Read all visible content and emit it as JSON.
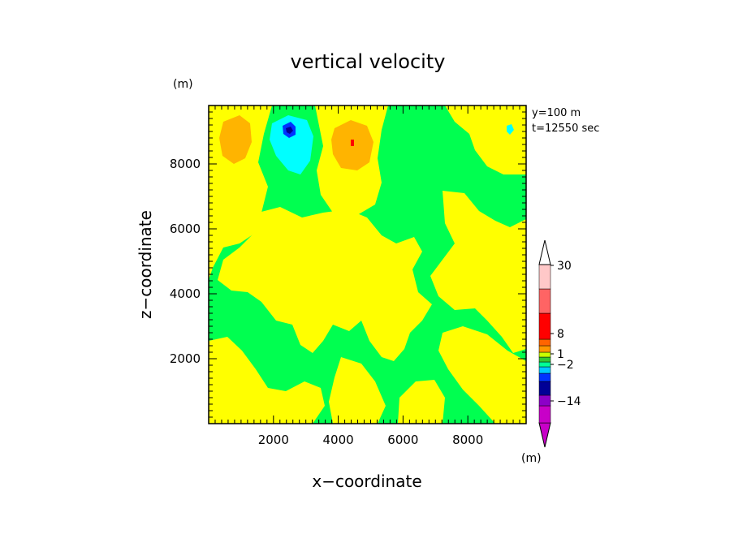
{
  "chart_data": {
    "type": "heatmap",
    "title": "vertical velocity",
    "xlabel": "x−coordinate",
    "ylabel": "z−coordinate",
    "x_unit": "(m)",
    "y_unit": "(m)",
    "xlim": [
      0,
      9800
    ],
    "ylim": [
      0,
      9800
    ],
    "x_ticks": [
      2000,
      4000,
      6000,
      8000
    ],
    "y_ticks": [
      2000,
      4000,
      6000,
      8000
    ],
    "info": [
      "y=100  m",
      "t=12550 sec"
    ],
    "colorbar": {
      "unit": "(m)",
      "labels": [
        {
          "value": 30,
          "text": "30"
        },
        {
          "value": 8,
          "text": "8"
        },
        {
          "value": 1,
          "text": "1"
        },
        {
          "value": -2,
          "text": "−2"
        },
        {
          "value": -14,
          "text": "−14"
        }
      ],
      "colors": [
        "#c800c8",
        "#8c00c8",
        "#000096",
        "#0032ff",
        "#00c8ff",
        "#00ff96",
        "#32c832",
        "#c8ff00",
        "#ff9600",
        "#ff6400",
        "#ff0000",
        "#ff6464",
        "#ffc8c8"
      ],
      "background_color": "#00ff50"
    }
  }
}
